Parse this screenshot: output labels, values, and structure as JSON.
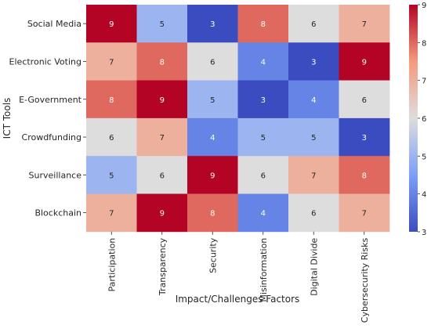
{
  "chart_data": {
    "type": "heatmap",
    "title": "",
    "xlabel": "Impact/Challenges Factors",
    "ylabel": "ICT Tools",
    "x_categories": [
      "Participation",
      "Transparency",
      "Security",
      "Misinformation",
      "Digital Divide",
      "Cybersecurity Risks"
    ],
    "y_categories": [
      "Social Media",
      "Electronic Voting",
      "E-Government",
      "Crowdfunding",
      "Surveillance",
      "Blockchain"
    ],
    "values": [
      [
        9,
        5,
        3,
        8,
        6,
        7
      ],
      [
        7,
        8,
        6,
        4,
        3,
        9
      ],
      [
        8,
        9,
        5,
        3,
        4,
        6
      ],
      [
        6,
        7,
        4,
        5,
        5,
        3
      ],
      [
        5,
        6,
        9,
        6,
        7,
        8
      ],
      [
        7,
        9,
        8,
        4,
        6,
        7
      ]
    ],
    "colorbar": {
      "colormap": "coolwarm",
      "range": [
        3,
        9
      ],
      "ticks": [
        "3",
        "4",
        "5",
        "6",
        "7",
        "8",
        "9"
      ]
    },
    "annotations": true
  }
}
